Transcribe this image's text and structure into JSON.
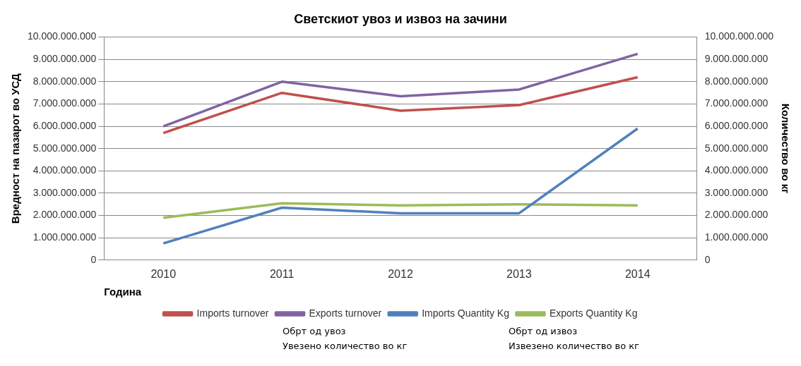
{
  "chart_data": {
    "type": "line",
    "title": "Светскиот увоз и извоз на зачини",
    "xlabel": "Година",
    "ylabel": "Вредност на пазарот во УСД",
    "y2label": "Количество во кг",
    "categories": [
      "2010",
      "2011",
      "2012",
      "2013",
      "2014"
    ],
    "series": [
      {
        "name": "Imports turnover",
        "color": "#c0504d",
        "values": [
          5700000000,
          7500000000,
          6700000000,
          6950000000,
          8200000000
        ]
      },
      {
        "name": "Exports turnover",
        "color": "#8064a2",
        "values": [
          6000000000,
          8000000000,
          7350000000,
          7650000000,
          9250000000
        ]
      },
      {
        "name": "Imports Quantity Kg",
        "color": "#4f81bd",
        "axis": "y2",
        "values": [
          750000000,
          2350000000,
          2100000000,
          2100000000,
          5900000000
        ]
      },
      {
        "name": "Exports Quantity Kg",
        "color": "#9bbb59",
        "axis": "y2",
        "values": [
          1900000000,
          2550000000,
          2450000000,
          2500000000,
          2450000000
        ]
      }
    ],
    "ylim": [
      0,
      10000000000
    ],
    "yticks": [
      0,
      {
        "value": 1000000000,
        "label": "1.000.000.000"
      },
      {
        "value": 2000000000,
        "label": "2.000.000.000"
      },
      {
        "value": 3000000000,
        "label": "3.000.000.000"
      },
      {
        "value": 4000000000,
        "label": "4.000.000.000"
      },
      {
        "value": 5000000000,
        "label": "5.000.000.000"
      },
      {
        "value": 6000000000,
        "label": "6.000.000.000"
      },
      {
        "value": 7000000000,
        "label": "7.000.000.000"
      },
      {
        "value": 8000000000,
        "label": "8.000.000.000"
      },
      {
        "value": 9000000000,
        "label": "9.000.000.000"
      },
      {
        "value": 10000000000,
        "label": "10.000.000.000"
      }
    ],
    "y2lim": [
      0,
      10000000000
    ],
    "y2ticks": [
      0,
      {
        "value": 1000000000,
        "label": "1.000.000.000"
      },
      {
        "value": 2000000000,
        "label": "2.000.000.000"
      },
      {
        "value": 3000000000,
        "label": "3.000.000.000"
      },
      {
        "value": 4000000000,
        "label": "4.000.000.000"
      },
      {
        "value": 5000000000,
        "label": "5.000.000.000"
      },
      {
        "value": 6000000000,
        "label": "6.000.000.000"
      },
      {
        "value": 7000000000,
        "label": "7.000.000.000"
      },
      {
        "value": 8000000000,
        "label": "8.000.000.000"
      },
      {
        "value": 9000000000,
        "label": "9.000.000.000"
      },
      {
        "value": 10000000000,
        "label": "10.000.000.000"
      }
    ],
    "grid": "y",
    "legend": "bottom",
    "marker": "none",
    "line_style": "solid",
    "annotations": [
      "Обрт од увоз",
      "Обрт од извоз",
      "Увезено количество во кг",
      "Извезено количество во кг"
    ]
  }
}
